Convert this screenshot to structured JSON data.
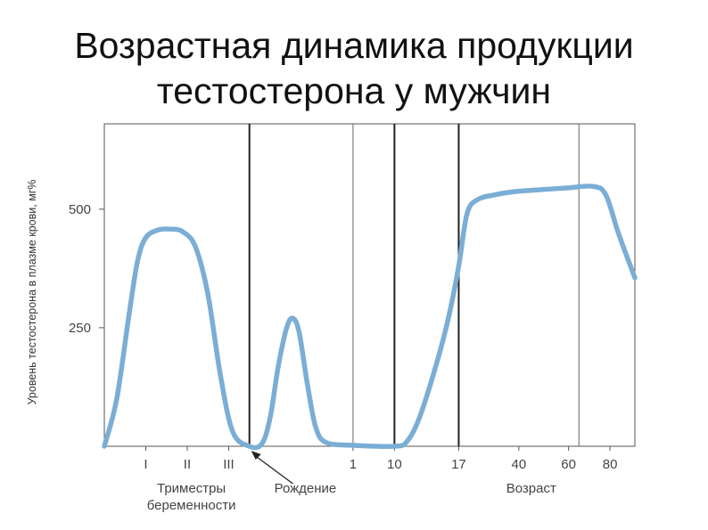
{
  "title": {
    "line1": "Возрастная динамика продукции",
    "line2": "тестостерона у мужчин"
  },
  "chart_data": {
    "type": "line",
    "title": "Возрастная динамика продукции тестостерона у мужчин",
    "ylabel": "Уровень тестостерона в плазме крови, мг%",
    "ylim": [
      0,
      680
    ],
    "y_ticks": [
      {
        "value": 250,
        "label": "250"
      },
      {
        "value": 500,
        "label": "500"
      }
    ],
    "x_tick_labels": [
      {
        "label": "I",
        "pos": 1
      },
      {
        "label": "II",
        "pos": 2
      },
      {
        "label": "III",
        "pos": 3
      },
      {
        "label": "1",
        "pos": 6
      },
      {
        "label": "10",
        "pos": 7
      },
      {
        "label": "17",
        "pos": 8.55
      },
      {
        "label": "40",
        "pos": 10
      },
      {
        "label": "60",
        "pos": 11.2
      },
      {
        "label": "80",
        "pos": 12.2
      }
    ],
    "x_group_labels": [
      {
        "lines": [
          "Триместры",
          "беременности"
        ],
        "pos": 2.1
      },
      {
        "lines": [
          "Рождение"
        ],
        "pos": 4.85,
        "arrow_to": 3.5
      },
      {
        "lines": [
          "Возраст"
        ],
        "pos": 10.3
      }
    ],
    "vertical_lines": [
      {
        "pos": 3.5,
        "weight": "bold"
      },
      {
        "pos": 6,
        "weight": "thin"
      },
      {
        "pos": 7,
        "weight": "bold"
      },
      {
        "pos": 8.55,
        "weight": "bold"
      },
      {
        "pos": 11.45,
        "weight": "thin"
      }
    ],
    "xlim": [
      0,
      12.8
    ],
    "series": [
      {
        "color": "#7aaed6",
        "points": [
          [
            0,
            0
          ],
          [
            0.3,
            100
          ],
          [
            0.6,
            280
          ],
          [
            0.8,
            390
          ],
          [
            1.0,
            440
          ],
          [
            1.3,
            456
          ],
          [
            1.6,
            458
          ],
          [
            1.9,
            452
          ],
          [
            2.2,
            420
          ],
          [
            2.5,
            320
          ],
          [
            2.8,
            150
          ],
          [
            3.1,
            30
          ],
          [
            3.5,
            0
          ],
          [
            3.8,
            5
          ],
          [
            4.0,
            60
          ],
          [
            4.2,
            170
          ],
          [
            4.4,
            250
          ],
          [
            4.55,
            270
          ],
          [
            4.7,
            240
          ],
          [
            4.9,
            130
          ],
          [
            5.1,
            40
          ],
          [
            5.35,
            8
          ],
          [
            6,
            2
          ],
          [
            7,
            0
          ],
          [
            7.3,
            10
          ],
          [
            7.6,
            60
          ],
          [
            8.0,
            170
          ],
          [
            8.3,
            270
          ],
          [
            8.55,
            380
          ],
          [
            8.75,
            490
          ],
          [
            9.0,
            520
          ],
          [
            9.4,
            530
          ],
          [
            9.9,
            537
          ],
          [
            10.5,
            541
          ],
          [
            11.2,
            545
          ],
          [
            11.8,
            548
          ],
          [
            12.1,
            530
          ],
          [
            12.4,
            450
          ],
          [
            12.8,
            355
          ]
        ]
      }
    ]
  }
}
